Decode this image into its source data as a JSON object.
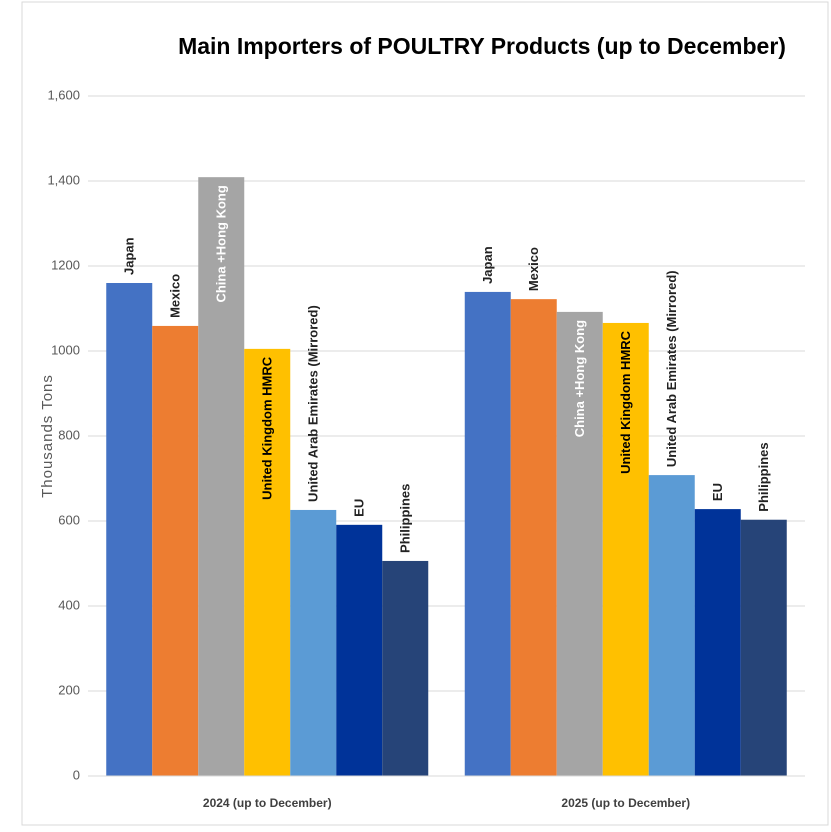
{
  "chart_data": {
    "type": "bar",
    "title": "Main Importers of POULTRY Products (up to December)",
    "y_label": "Thousands Tons",
    "categories": [
      "2024 (up to December)",
      "2025 (up to December)"
    ],
    "series": [
      {
        "name": "Japan",
        "color": "#4472c4",
        "values": [
          1160,
          1139
        ]
      },
      {
        "name": "Mexico",
        "color": "#ed7d31",
        "values": [
          1059,
          1122
        ]
      },
      {
        "name": "China +Hong Kong",
        "color": "#a5a5a5",
        "values": [
          1409,
          1092
        ]
      },
      {
        "name": "United Kingdom HMRC",
        "color": "#ffc000",
        "values": [
          1005,
          1066
        ]
      },
      {
        "name": "United Arab Emirates (Mirrored)",
        "color": "#5b9bd5",
        "values": [
          626,
          708
        ]
      },
      {
        "name": "EU",
        "color": "#003399",
        "values": [
          591,
          628
        ]
      },
      {
        "name": "Philippines",
        "color": "#264478",
        "values": [
          506,
          603
        ]
      }
    ],
    "ylim": [
      0,
      1600
    ],
    "yticks": [
      0,
      200,
      400,
      600,
      800,
      1000,
      1200,
      {
        "value": 1400,
        "label": "1,400"
      },
      {
        "value": 1600,
        "label": "1,600"
      }
    ],
    "grid": true
  }
}
